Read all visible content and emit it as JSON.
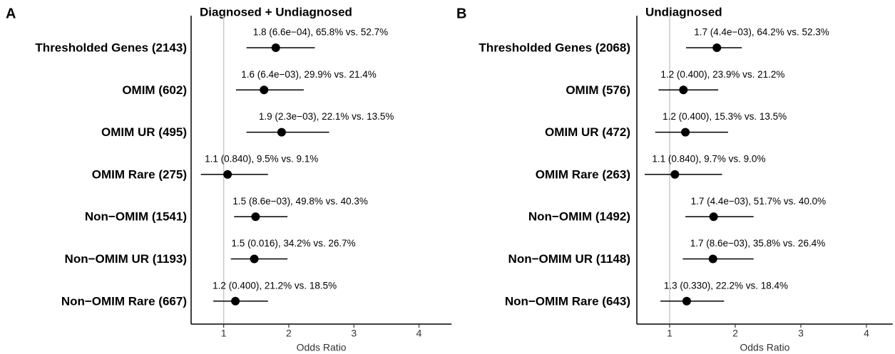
{
  "chart_data": [
    {
      "type": "forest",
      "panel": "A",
      "title": "Diagnosed + Undiagnosed",
      "xlabel": "Odds Ratio",
      "categories": [
        "Thresholded Genes (2143)",
        "OMIM (602)",
        "OMIM UR (495)",
        "OMIM Rare (275)",
        "Non−OMIM (1541)",
        "Non−OMIM UR (1193)",
        "Non−OMIM Rare (667)"
      ],
      "values": [
        1.8,
        1.62,
        1.89,
        1.06,
        1.49,
        1.47,
        1.18
      ],
      "ci_low": [
        1.35,
        1.19,
        1.35,
        0.65,
        1.16,
        1.11,
        0.84
      ],
      "ci_high": [
        2.4,
        2.23,
        2.62,
        1.68,
        1.98,
        1.98,
        1.68
      ],
      "value_labels": [
        "1.8 (6.6e−04), 65.8% vs. 52.7%",
        "1.6 (6.4e−03), 29.9% vs. 21.4%",
        "1.9 (2.3e−03), 22.1% vs. 13.5%",
        "1.1 (0.840), 9.5% vs. 9.1%",
        "1.5 (8.6e−03), 49.8% vs. 40.3%",
        "1.5 (0.016), 34.2% vs. 26.7%",
        "1.2 (0.400), 21.2% vs. 18.5%"
      ],
      "xlim": [
        0.5,
        4.5
      ],
      "xticks": [
        1,
        2,
        3,
        4
      ],
      "ref_line": 1,
      "color": "#000000"
    },
    {
      "type": "forest",
      "panel": "B",
      "title": "Undiagnosed",
      "xlabel": "Odds Ratio",
      "categories": [
        "Thresholded Genes (2068)",
        "OMIM (576)",
        "OMIM UR (472)",
        "OMIM Rare (263)",
        "Non−OMIM (1492)",
        "Non−OMIM UR (1148)",
        "Non−OMIM Rare (643)"
      ],
      "values": [
        1.72,
        1.21,
        1.24,
        1.08,
        1.67,
        1.66,
        1.26
      ],
      "ci_low": [
        1.25,
        0.83,
        0.78,
        0.62,
        1.24,
        1.2,
        0.86
      ],
      "ci_high": [
        2.1,
        1.74,
        1.89,
        1.8,
        2.28,
        2.28,
        1.83
      ],
      "value_labels": [
        "1.7 (4.4e−03), 64.2% vs. 52.3%",
        "1.2 (0.400), 23.9% vs. 21.2%",
        "1.2 (0.400), 15.3% vs. 13.5%",
        "1.1 (0.840), 9.7% vs. 9.0%",
        "1.7 (4.4e−03), 51.7% vs. 40.0%",
        "1.7 (8.6e−03), 35.8% vs. 26.4%",
        "1.3 (0.330), 22.2% vs. 18.4%"
      ],
      "xlim": [
        0.5,
        4.4
      ],
      "xticks": [
        1,
        2,
        3,
        4
      ],
      "ref_line": 1,
      "color": "#000000"
    }
  ]
}
